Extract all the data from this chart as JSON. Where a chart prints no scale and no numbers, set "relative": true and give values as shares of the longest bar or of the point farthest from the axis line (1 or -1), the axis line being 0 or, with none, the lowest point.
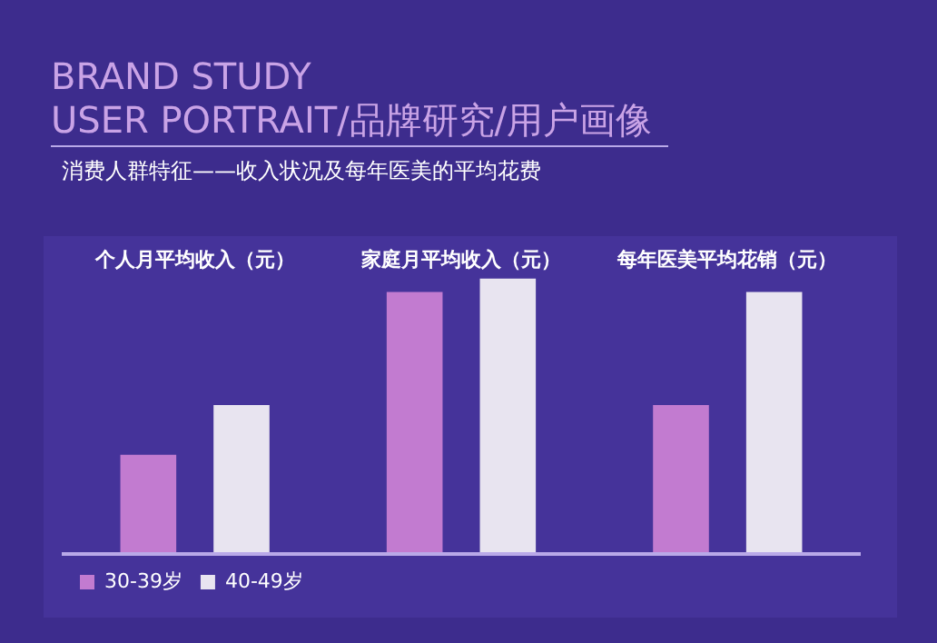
{
  "chart_data": {
    "type": "bar",
    "title": "BRAND STUDY",
    "subtitle": "USER PORTRAIT/品牌研究/用户画像",
    "annotations": [
      "消费人群特征——收入状况及每年医美的平均花费"
    ],
    "categories": [
      "个人月平均收入（元）",
      "家庭月平均收入（元）",
      "每年医美平均花销（元）"
    ],
    "series": [
      {
        "name": "30-39岁",
        "color": "#c27bd0",
        "values": [
          0.36,
          0.95,
          0.54
        ]
      },
      {
        "name": "40-49岁",
        "color": "#e8e4f0",
        "values": [
          0.54,
          1,
          0.95
        ]
      }
    ],
    "relative": true,
    "legend": "bottom left",
    "grid": false
  }
}
